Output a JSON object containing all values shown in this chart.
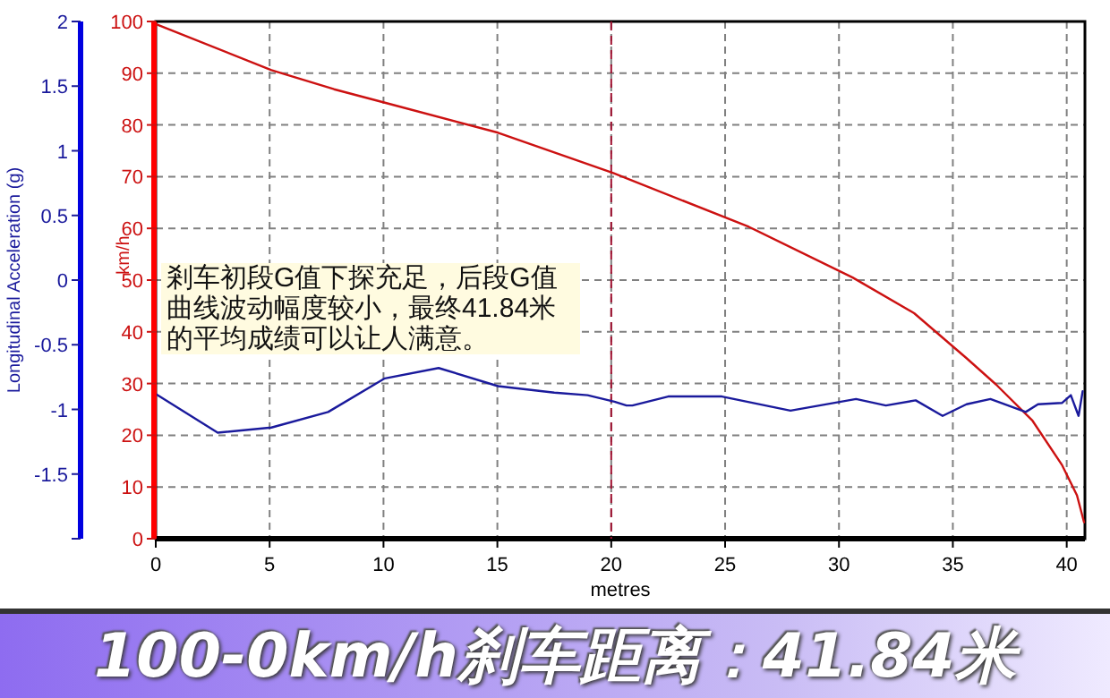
{
  "chart_data": {
    "type": "line",
    "title": "100-0km/h刹车距离：41.84米",
    "xlabel": "metres",
    "ylabel": "km/h",
    "y2label": "Longitudinal Acceleration (g)",
    "annotations": [
      "剎车初段G值下探充足，后段G值曲线波动幅度较小，最终41.84米的平均成绩可以让人满意。"
    ],
    "xlim": [
      0,
      40.8
    ],
    "xticks": [
      0,
      5,
      10,
      15,
      20,
      25,
      30,
      35,
      40
    ],
    "ylim": [
      0,
      100
    ],
    "yticks": [
      0,
      10,
      20,
      30,
      40,
      50,
      60,
      70,
      80,
      90,
      100
    ],
    "y2lim": [
      -2,
      2
    ],
    "y2ticks": [
      {
        "value": -2,
        "label": null
      },
      -1.5,
      -1,
      -0.5,
      0,
      0.5,
      1,
      1.5,
      2
    ],
    "grid": true,
    "line_style": "solid",
    "ref_lines": [
      {
        "axis": "x",
        "value": 20,
        "color": "#a01030",
        "line_style": "dashed"
      }
    ],
    "series": [
      {
        "color": "#cc1111",
        "axis": "y",
        "x": [
          0,
          5.08,
          7.83,
          10.06,
          15.03,
          20.09,
          26.04,
          30.6,
          33.3,
          35.6,
          36.9,
          38.5,
          39.8,
          40.45,
          40.76
        ],
        "values": [
          99.5,
          90.6,
          86.9,
          84.3,
          78.5,
          70.7,
          60.3,
          50.5,
          43.6,
          34.9,
          29.8,
          22.8,
          14.2,
          8.4,
          3.2
        ]
      },
      {
        "color": "#1a1a9c",
        "axis": "y2",
        "x": [
          0,
          2.72,
          5.08,
          7.57,
          10.06,
          12.42,
          15.03,
          17.5,
          18.96,
          20.14,
          20.67,
          20.93,
          22.5,
          24.86,
          27.87,
          30.75,
          32.06,
          33.37,
          34.55,
          35.6,
          36.65,
          38.2,
          38.74,
          39.79,
          40.18,
          40.52,
          40.7
        ],
        "values": [
          -0.88,
          -1.18,
          -1.14,
          -1.02,
          -0.76,
          -0.68,
          -0.82,
          -0.87,
          -0.89,
          -0.94,
          -0.97,
          -0.97,
          -0.9,
          -0.9,
          -1.01,
          -0.92,
          -0.97,
          -0.93,
          -1.05,
          -0.96,
          -0.92,
          -1.02,
          -0.96,
          -0.95,
          -0.89,
          -1.05,
          -0.86
        ]
      }
    ]
  }
}
